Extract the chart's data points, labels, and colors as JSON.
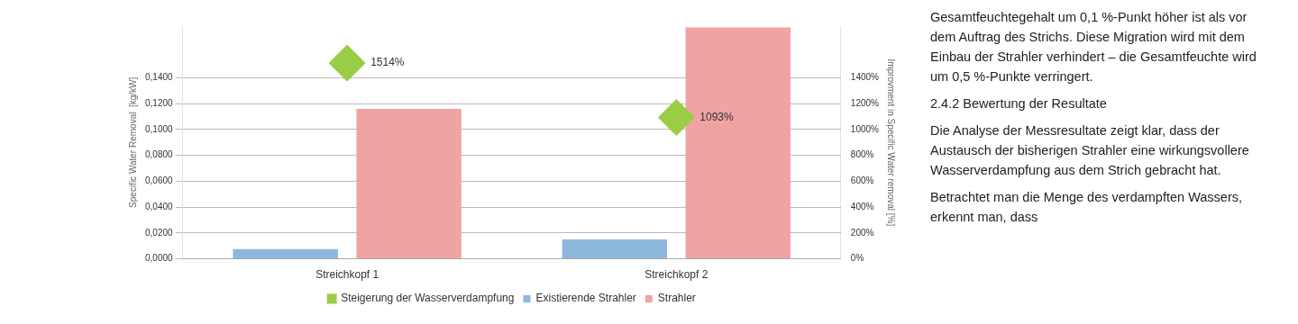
{
  "chart_data": {
    "type": "bar",
    "categories": [
      "Streichkopf 1",
      "Streichkopf 2"
    ],
    "ylabel": "Specific Water Removal  [kg/kW]",
    "y2label": "Improvment in Specific Water removal [%]",
    "ylim": [
      0,
      0.18
    ],
    "yticks": [
      {
        "value": 0,
        "label": "0,0000"
      },
      {
        "value": 0.02,
        "label": "0,0200"
      },
      {
        "value": 0.04,
        "label": "0,0400"
      },
      {
        "value": 0.06,
        "label": "0,0600"
      },
      {
        "value": 0.08,
        "label": "0,0800"
      },
      {
        "value": 0.1,
        "label": "0,1000"
      },
      {
        "value": 0.12,
        "label": "0,1200"
      },
      {
        "value": 0.14,
        "label": "0,1400"
      }
    ],
    "y2lim": [
      0,
      1800
    ],
    "y2ticks": [
      {
        "value": 0,
        "label": "0%"
      },
      {
        "value": 200,
        "label": "200%"
      },
      {
        "value": 400,
        "label": "400%"
      },
      {
        "value": 600,
        "label": "600%"
      },
      {
        "value": 800,
        "label": "800%"
      },
      {
        "value": 1000,
        "label": "1000%"
      },
      {
        "value": 1200,
        "label": "1200%"
      },
      {
        "value": 1400,
        "label": "1400%"
      }
    ],
    "series": [
      {
        "name": "Existierende Strahler",
        "color": "#8db8dc",
        "values": [
          0.0075,
          0.015
        ]
      },
      {
        "name": "Strahler",
        "color": "#f0a3a3",
        "values": [
          0.116,
          0.179
        ]
      },
      {
        "name": "Steigerung der Wasserverdampfung",
        "type": "scatter",
        "axis": "y2",
        "color": "#9acd45",
        "marker": "diamond",
        "x": [
          "Streichkopf 1",
          "Streichkopf 2"
        ],
        "values": [
          1514,
          1093
        ],
        "value_labels": [
          "1514%",
          "1093%"
        ]
      }
    ],
    "grid": "y",
    "legend": "bottom",
    "annotations": [
      "Gesamtfeuchtegehalt um 0,1 %-Punkt höher ist als vor dem Auftrag des Strichs. Diese Migration wird mit dem Einbau der Strahler verhindert – die Gesamtfeuchte wird um 0,5 %-Punkte verringert.",
      "2.4.2 Bewertung der Resultate",
      "Die Analyse der Messresultate zeigt klar, dass der Austausch der bisherigen Strahler eine wirkungsvollere Wasserverdampfung aus dem Strich gebracht hat.",
      "Betrachtet man die Menge des verdampften Wassers, erkennt man, dass"
    ]
  }
}
